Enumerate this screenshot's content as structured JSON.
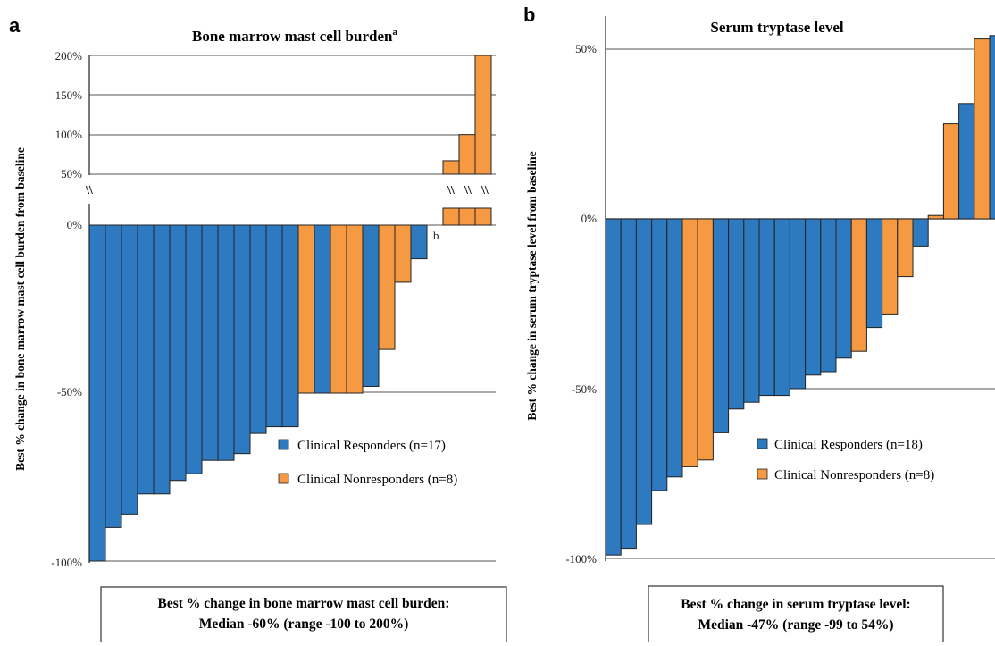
{
  "colors": {
    "responder": "#2e7ac0",
    "nonresponder": "#f59a43",
    "stroke": "#222222"
  },
  "chart_data": [
    {
      "type": "bar",
      "panel_label": "a",
      "title": "Bone marrow mast cell burden",
      "title_superscript": "a",
      "ylabel": "Best % change in bone marrow mast cell burden from baseline",
      "ylim_lower": [
        -100,
        0
      ],
      "ylim_upper": [
        50,
        200
      ],
      "axis_break": true,
      "break_marks": [
        "\\\\",
        "\\\\",
        "\\\\",
        "\\\\"
      ],
      "yticks_lower": [
        "-100%",
        "-50%",
        "0%"
      ],
      "yticks_upper": [
        "50%",
        "100%",
        "150%",
        "200%"
      ],
      "grid": true,
      "legend_position": "bottom-right",
      "legend": [
        {
          "label": "Clinical Responders  (n=17)",
          "group": "responder"
        },
        {
          "label": "Clinical Nonresponders (n=8)",
          "group": "nonresponder"
        }
      ],
      "annotation": "b",
      "annotation_bar_index": 20,
      "values": [
        -100,
        -90,
        -86,
        -80,
        -80,
        -76,
        -74,
        -70,
        -70,
        -68,
        -62,
        -60,
        -60,
        -50,
        -50,
        -50,
        -50,
        -48,
        -37,
        -17,
        -10,
        0,
        67,
        100,
        200
      ],
      "groups": [
        "responder",
        "responder",
        "responder",
        "responder",
        "responder",
        "responder",
        "responder",
        "responder",
        "responder",
        "responder",
        "responder",
        "responder",
        "responder",
        "nonresponder",
        "responder",
        "nonresponder",
        "nonresponder",
        "responder",
        "nonresponder",
        "nonresponder",
        "responder",
        "responder",
        "nonresponder",
        "nonresponder",
        "nonresponder"
      ],
      "summary_lines": [
        "Best % change in bone marrow mast cell burden:",
        "Median -60% (range -100 to 200%)"
      ]
    },
    {
      "type": "bar",
      "panel_label": "b",
      "title": "Serum tryptase level",
      "ylabel": "Best % change in serum tryptase level from baseline",
      "ylim": [
        -100,
        50
      ],
      "yticks": [
        "-100%",
        "-50%",
        "0%",
        "50%"
      ],
      "grid": true,
      "legend_position": "bottom-right",
      "legend": [
        {
          "label": "Clinical Responders (n=18)",
          "group": "responder"
        },
        {
          "label": "Clinical Nonresponders (n=8)",
          "group": "nonresponder"
        }
      ],
      "values": [
        -99,
        -97,
        -90,
        -80,
        -76,
        -73,
        -71,
        -63,
        -56,
        -54,
        -52,
        -52,
        -50,
        -46,
        -45,
        -41,
        -39,
        -32,
        -28,
        -17,
        -8,
        1,
        28,
        34,
        53,
        54
      ],
      "groups": [
        "responder",
        "responder",
        "responder",
        "responder",
        "responder",
        "nonresponder",
        "nonresponder",
        "responder",
        "responder",
        "responder",
        "responder",
        "responder",
        "responder",
        "responder",
        "responder",
        "responder",
        "nonresponder",
        "responder",
        "nonresponder",
        "nonresponder",
        "responder",
        "nonresponder",
        "nonresponder",
        "responder",
        "nonresponder",
        "responder"
      ],
      "summary_lines": [
        "Best % change in serum tryptase level:",
        "Median -47% (range -99 to 54%)"
      ]
    }
  ]
}
